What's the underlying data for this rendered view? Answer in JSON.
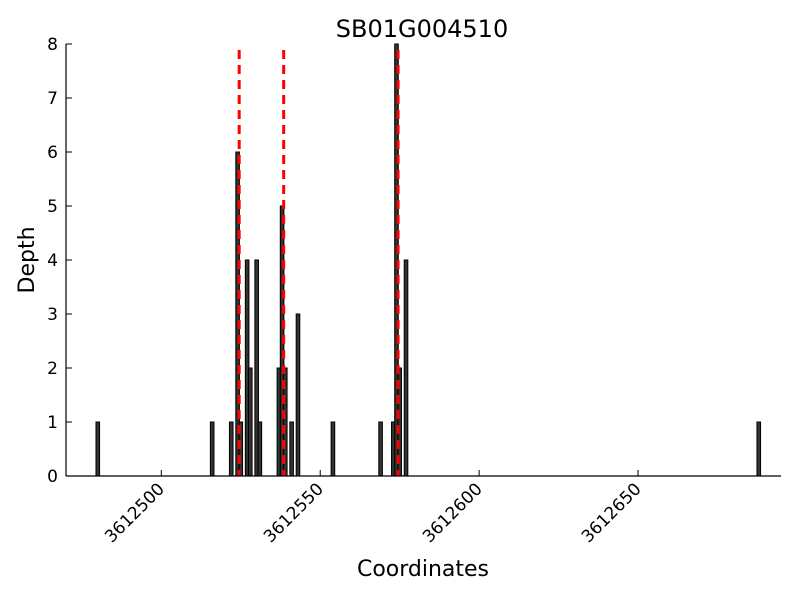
{
  "chart_data": {
    "type": "bar",
    "title": "SB01G004510",
    "xlabel": "Coordinates",
    "ylabel": "Depth",
    "xlim": [
      3612470,
      3612695
    ],
    "ylim": [
      0,
      8
    ],
    "x_ticks": [
      3612500,
      3612550,
      3612600,
      3612650
    ],
    "x_tick_labels": [
      "3612500",
      "3612550",
      "3612600",
      "3612650"
    ],
    "y_ticks": [
      0,
      1,
      2,
      3,
      4,
      5,
      6,
      7,
      8
    ],
    "y_tick_labels": [
      "0",
      "1",
      "2",
      "3",
      "4",
      "5",
      "6",
      "7",
      "8"
    ],
    "grid": false,
    "bar_color": "#333333",
    "vline_color": "#ff0000",
    "bars": [
      {
        "x": 3612480,
        "value": 1
      },
      {
        "x": 3612516,
        "value": 1
      },
      {
        "x": 3612522,
        "value": 1
      },
      {
        "x": 3612524,
        "value": 6
      },
      {
        "x": 3612525,
        "value": 1
      },
      {
        "x": 3612527,
        "value": 4
      },
      {
        "x": 3612528,
        "value": 2
      },
      {
        "x": 3612530,
        "value": 4
      },
      {
        "x": 3612531,
        "value": 1
      },
      {
        "x": 3612537,
        "value": 2
      },
      {
        "x": 3612538,
        "value": 5
      },
      {
        "x": 3612539,
        "value": 2
      },
      {
        "x": 3612541,
        "value": 1
      },
      {
        "x": 3612543,
        "value": 3
      },
      {
        "x": 3612554,
        "value": 1
      },
      {
        "x": 3612569,
        "value": 1
      },
      {
        "x": 3612573,
        "value": 1
      },
      {
        "x": 3612574,
        "value": 8
      },
      {
        "x": 3612575,
        "value": 2
      },
      {
        "x": 3612577,
        "value": 4
      },
      {
        "x": 3612688,
        "value": 1
      }
    ],
    "vlines": [
      3612524.5,
      3612538.5,
      3612574.5
    ]
  }
}
